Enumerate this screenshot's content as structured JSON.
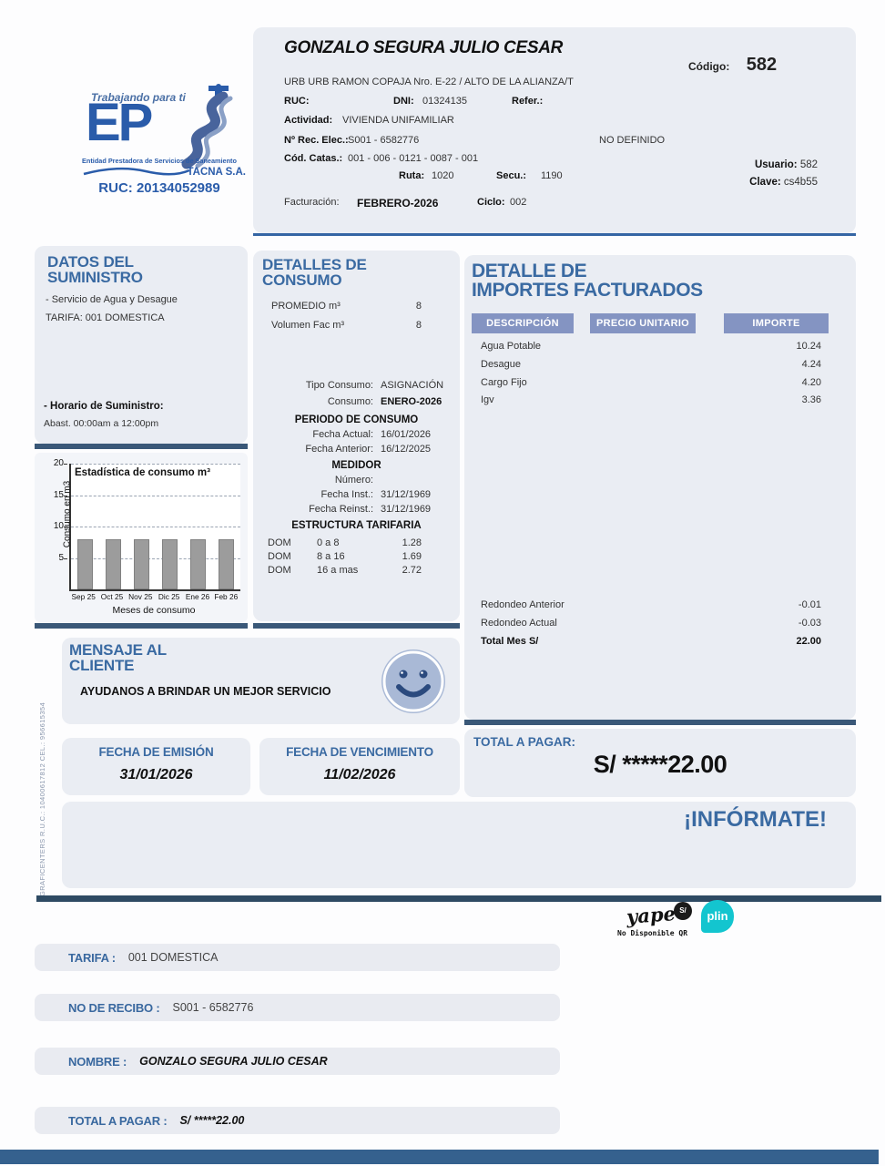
{
  "colors": {
    "heading_blue": "#3a6aa2",
    "brand_blue": "#2a5caa",
    "chip_blue": "#8494c2",
    "divider_navy": "#3a5878",
    "bar_gray": "#9c9c9c",
    "plin_teal": "#13c5cf",
    "box_bg": "#eaedf3"
  },
  "logo": {
    "tagline": "Trabajando para ti",
    "brand": "EP",
    "subtitle": "Entidad Prestadora de Servicios de Saneamiento",
    "company": "TACNA S.A.",
    "ruc": "RUC: 20134052989"
  },
  "header": {
    "customer_name": "GONZALO SEGURA JULIO CESAR",
    "codigo_label": "Código:",
    "codigo": "582",
    "address": "URB URB RAMON COPAJA Nro. E-22 / ALTO DE LA ALIANZA/T",
    "ruc_label": "RUC:",
    "dni_label": "DNI:",
    "dni": "01324135",
    "refer_label": "Refer.:",
    "actividad_label": "Actividad:",
    "actividad": "VIVIENDA UNIFAMILIAR",
    "rec_elec_label": "Nº Rec. Elec.:",
    "rec_elec": "S001 - 6582776",
    "no_definido": "NO DEFINIDO",
    "cod_catas_label": "Cód. Catas.:",
    "cod_catas": "001 - 006 - 0121 - 0087 - 001",
    "ruta_label": "Ruta:",
    "ruta": "1020",
    "secu_label": "Secu.:",
    "secu": "1190",
    "usuario_label": "Usuario:",
    "usuario": "582",
    "clave_label": "Clave:",
    "clave": "cs4b55",
    "facturacion_label": "Facturación:",
    "facturacion": "FEBRERO-2026",
    "ciclo_label": "Ciclo:",
    "ciclo": "002"
  },
  "supply": {
    "title1": "DATOS DEL",
    "title2": "SUMINISTRO",
    "service": "- Servicio de Agua y Desague",
    "tarifa": "TARIFA: 001 DOMESTICA",
    "schedule_label": "- Horario de Suministro:",
    "schedule": "Abast. 00:00am a 12:00pm"
  },
  "chart_data": {
    "type": "bar",
    "title": "Estadística de consumo m³",
    "categories": [
      "Sep 25",
      "Oct 25",
      "Nov 25",
      "Dic 25",
      "Ene 26",
      "Feb 26"
    ],
    "values": [
      8,
      8,
      8,
      8,
      8,
      8
    ],
    "xlabel": "Meses de consumo",
    "ylabel": "Consumo en m3",
    "ylim": [
      0,
      20
    ],
    "yticks": [
      5,
      10,
      15,
      20
    ],
    "grid": true,
    "bar_color": "#9c9c9c"
  },
  "consumption": {
    "title1": "DETALLES DE",
    "title2": "CONSUMO",
    "promedio_label": "PROMEDIO m³",
    "promedio": "8",
    "volumen_label": "Volumen Fac m³",
    "volumen": "8",
    "tipo_label": "Tipo Consumo:",
    "tipo": "ASIGNACIÓN",
    "consumo_label": "Consumo:",
    "consumo": "ENERO-2026",
    "periodo_title": "PERIODO DE CONSUMO",
    "fecha_actual_label": "Fecha Actual:",
    "fecha_actual": "16/01/2026",
    "fecha_anterior_label": "Fecha Anterior:",
    "fecha_anterior": "16/12/2025",
    "medidor_title": "MEDIDOR",
    "numero_label": "Número:",
    "fecha_inst_label": "Fecha Inst.:",
    "fecha_inst": "31/12/1969",
    "fecha_reinst_label": "Fecha Reinst.:",
    "fecha_reinst": "31/12/1969",
    "estructura_title": "ESTRUCTURA TARIFARIA",
    "tarifas": [
      {
        "tipo": "DOM",
        "rango": "0 a 8",
        "precio": "1.28"
      },
      {
        "tipo": "DOM",
        "rango": "8 a 16",
        "precio": "1.69"
      },
      {
        "tipo": "DOM",
        "rango": "16 a mas",
        "precio": "2.72"
      }
    ]
  },
  "charges": {
    "title1": "DETALLE DE",
    "title2": "IMPORTES FACTURADOS",
    "col_desc": "DESCRIPCIÓN",
    "col_precio": "PRECIO UNITARIO",
    "col_importe": "IMPORTE",
    "rows": [
      {
        "desc": "Agua Potable",
        "importe": "10.24"
      },
      {
        "desc": "Desague",
        "importe": "4.24"
      },
      {
        "desc": "Cargo Fijo",
        "importe": "4.20"
      },
      {
        "desc": "Igv",
        "importe": "3.36"
      }
    ],
    "totals": [
      {
        "label": "Redondeo Anterior",
        "value": "-0.01"
      },
      {
        "label": "Redondeo Actual",
        "value": "-0.03"
      },
      {
        "label": "Total Mes S/",
        "value": "22.00"
      }
    ]
  },
  "message": {
    "title1": "MENSAJE AL",
    "title2": "CLIENTE",
    "text": "AYUDANOS A BRINDAR UN MEJOR SERVICIO"
  },
  "dates": {
    "emision_title": "FECHA DE EMISIÓN",
    "emision": "31/01/2026",
    "vencimiento_title": "FECHA DE VENCIMIENTO",
    "vencimiento": "11/02/2026"
  },
  "total": {
    "label": "TOTAL A PAGAR:",
    "amount": "S/ *****22.00"
  },
  "informate": "¡INFÓRMATE!",
  "print_credit": "GRAFICENTERS   R.U.C.: 10400617812   CEL.: 956615354",
  "payments": {
    "yape": "yape",
    "yape_badge": "S/",
    "plin": "plin",
    "qr_note": "No Disponible QR"
  },
  "summary_rows": [
    {
      "label": "TARIFA :",
      "value": "001 DOMESTICA"
    },
    {
      "label": "NO DE RECIBO :",
      "value": "S001 - 6582776"
    },
    {
      "label": "NOMBRE :",
      "value": "GONZALO SEGURA JULIO CESAR"
    },
    {
      "label": "TOTAL A PAGAR :",
      "value": "S/ *****22.00"
    }
  ]
}
